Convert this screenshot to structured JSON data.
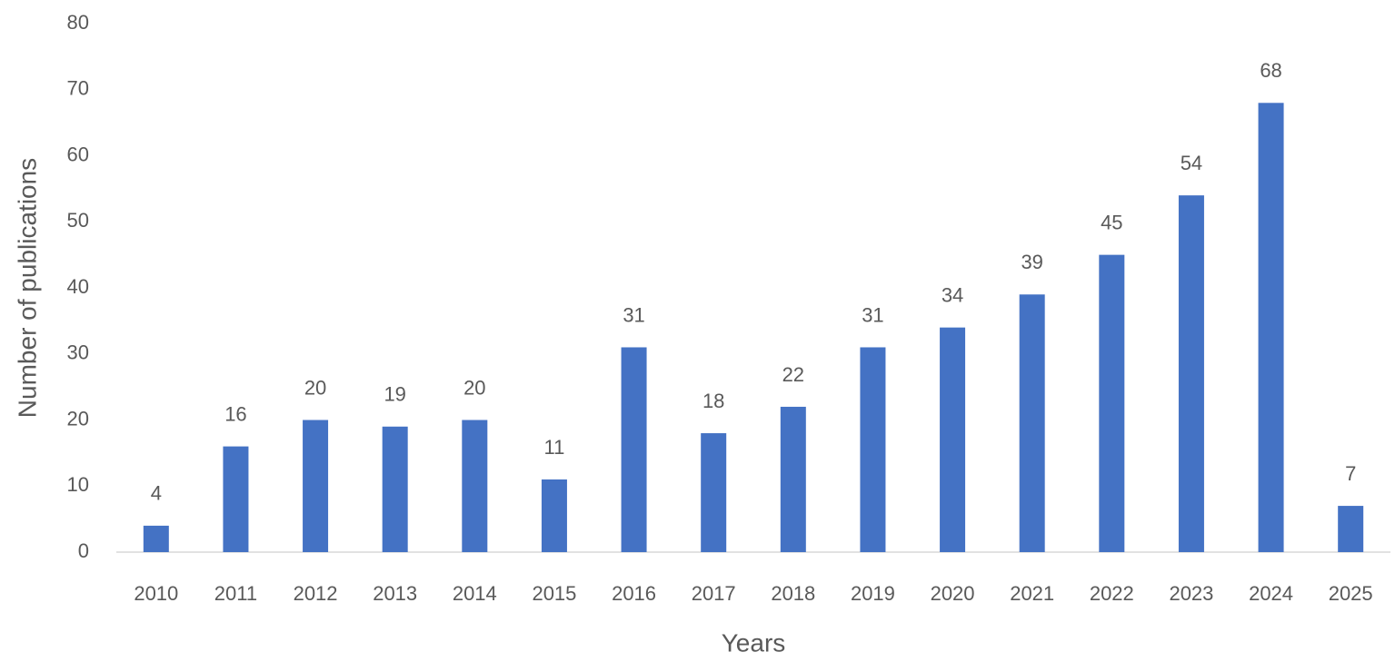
{
  "chart_data": {
    "type": "bar",
    "categories": [
      "2010",
      "2011",
      "2012",
      "2013",
      "2014",
      "2015",
      "2016",
      "2017",
      "2018",
      "2019",
      "2020",
      "2021",
      "2022",
      "2023",
      "2024",
      "2025"
    ],
    "values": [
      4,
      16,
      20,
      19,
      20,
      11,
      31,
      18,
      22,
      31,
      34,
      39,
      45,
      54,
      68,
      7
    ],
    "color": "#4472c4",
    "x_label": "Years",
    "y_label": "Number of publications",
    "ylim": [
      0,
      80
    ],
    "yticks": [
      0,
      10,
      20,
      30,
      40,
      50,
      60,
      70,
      80
    ],
    "grid": false
  }
}
